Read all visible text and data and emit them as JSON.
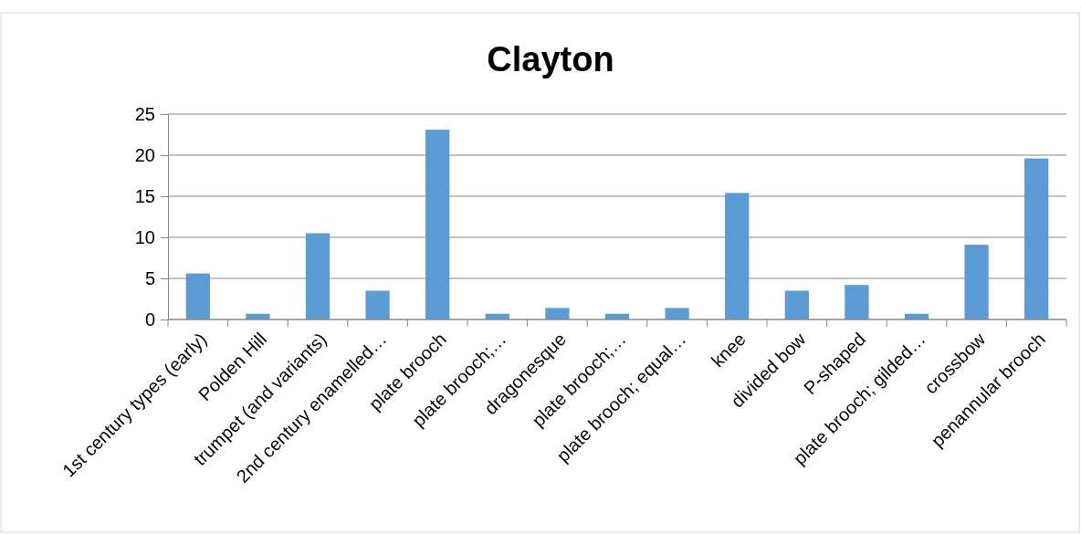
{
  "chart_data": {
    "type": "bar",
    "title": "Clayton",
    "categories": [
      "1st century types (early)",
      "Polden Hill",
      "trumpet (and variants)",
      "2nd century enamelled…",
      "plate brooch",
      "plate brooch;…",
      "dragonesque",
      "plate brooch;…",
      "plate brooch; equal…",
      "knee",
      "divided bow",
      "P-shaped",
      "plate brooch; gilded…",
      "crossbow",
      "penannular brooch"
    ],
    "values": [
      5.6,
      0.7,
      10.5,
      3.5,
      23.1,
      0.7,
      1.4,
      0.7,
      1.4,
      15.4,
      3.5,
      4.2,
      0.7,
      9.1,
      19.6
    ],
    "color": "#5b9bd5",
    "ylim": [
      0,
      25
    ],
    "yticks": [
      0,
      5,
      10,
      15,
      20,
      25
    ],
    "grid": "y"
  }
}
